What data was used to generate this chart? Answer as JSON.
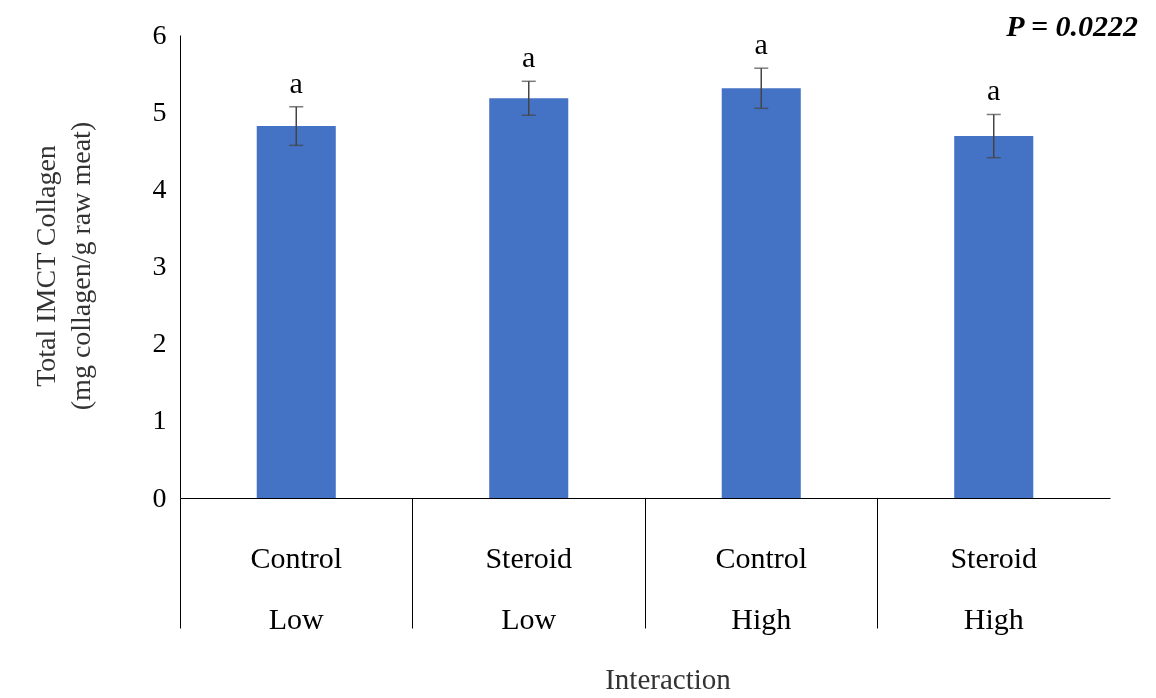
{
  "chart_data": {
    "type": "bar",
    "categories": [
      "Control\nLow",
      "Steroid\nLow",
      "Control\nHigh",
      "Steroid\nHigh"
    ],
    "values": [
      4.82,
      5.18,
      5.31,
      4.69
    ],
    "errors": [
      0.25,
      0.22,
      0.26,
      0.28
    ],
    "color": "#4472c4",
    "xlabel": "Interaction",
    "ylabel": "Total IMCT Collagen\n(mg collagen/g raw meat)",
    "ylim": [
      0,
      6
    ],
    "yticks": [
      0,
      1,
      2,
      3,
      4,
      5,
      6
    ],
    "grid": false,
    "annotations": [
      "a",
      "a",
      "a",
      "a",
      "P = 0.0222"
    ]
  }
}
